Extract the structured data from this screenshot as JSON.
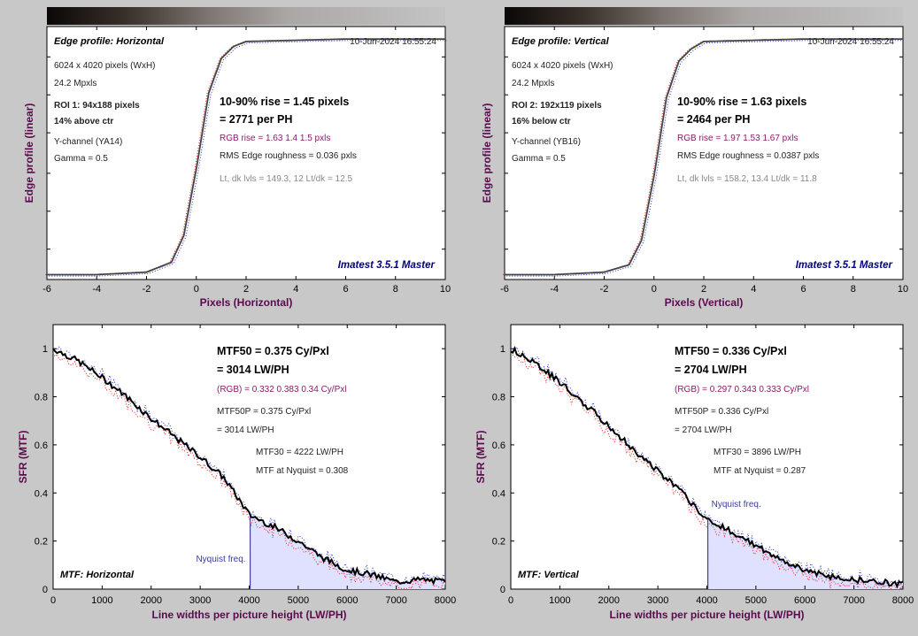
{
  "colors": {
    "background": "#c8c8c8",
    "axis_label": "#5a0a4e",
    "curve": "#000000",
    "red": "#e02020",
    "blue": "#2030d0",
    "fill": "#e0e0ff",
    "brand": "#000080"
  },
  "edge_panels": [
    {
      "title": "Edge profile: Horizontal",
      "timestamp": "10-Jun-2024 16:55:24",
      "info": [
        "6024 x 4020 pixels (WxH)",
        "24.2 Mpxls"
      ],
      "roi": [
        "ROI 1:  94x188 pixels",
        "14% above ctr"
      ],
      "channel": [
        "Y-channel  (YA14)",
        "Gamma = 0.5"
      ],
      "rise": "10-90% rise = 1.45 pixels",
      "per_ph": "= 2771 per PH",
      "rgb_rise": "RGB rise = 1.63  1.4  1.5 pxls",
      "roughness": "RMS Edge roughness = 0.036 pxls",
      "levels": "Lt, dk lvls = 149.3, 12   Lt/dk = 12.5",
      "brand": "Imatest 3.5.1 Master",
      "xlabel": "Pixels (Horizontal)",
      "ylabel": "Edge profile (linear)"
    },
    {
      "title": "Edge profile: Vertical",
      "timestamp": "10-Jun-2024 16:55:24",
      "info": [
        "6024 x 4020 pixels (WxH)",
        "24.2 Mpxls"
      ],
      "roi": [
        "ROI 2:  192x119 pixels",
        "16% below ctr"
      ],
      "channel": [
        "Y-channel  (YB16)",
        "Gamma = 0.5"
      ],
      "rise": "10-90% rise = 1.63 pixels",
      "per_ph": "= 2464 per PH",
      "rgb_rise": "RGB rise = 1.97  1.53  1.67 pxls",
      "roughness": "RMS Edge roughness = 0.0387 pxls",
      "levels": "Lt, dk lvls = 158.2, 13.4   Lt/dk = 11.8",
      "brand": "Imatest 3.5.1 Master",
      "xlabel": "Pixels (Vertical)",
      "ylabel": "Edge profile (linear)"
    }
  ],
  "mtf_panels": [
    {
      "mtf50": "MTF50 = 0.375 Cy/Pxl",
      "mtf50_lw": "= 3014 LW/PH",
      "rgb": "(RGB) = 0.332  0.383  0.34 Cy/Pxl",
      "mtf50p": "MTF50P = 0.375 Cy/Pxl",
      "mtf50p_lw": "= 3014 LW/PH",
      "mtf30": "MTF30 = 4222 LW/PH",
      "nyq_text": "MTF at Nyquist = 0.308",
      "nyq_label": "Nyquist freq.",
      "title": "MTF: Horizontal",
      "xlabel": "Line widths per picture height (LW/PH)",
      "ylabel": "SFR (MTF)"
    },
    {
      "mtf50": "MTF50 = 0.336 Cy/Pxl",
      "mtf50_lw": "= 2704 LW/PH",
      "rgb": "(RGB) = 0.297  0.343  0.333 Cy/Pxl",
      "mtf50p": "MTF50P = 0.336 Cy/Pxl",
      "mtf50p_lw": "= 2704 LW/PH",
      "mtf30": "MTF30 = 3896 LW/PH",
      "nyq_text": "MTF at Nyquist = 0.287",
      "nyq_label": "Nyquist freq.",
      "title": "MTF: Vertical",
      "xlabel": "Line widths per picture height (LW/PH)",
      "ylabel": "SFR (MTF)"
    }
  ],
  "chart_data": [
    {
      "type": "line",
      "title": "Edge profile: Horizontal",
      "xlabel": "Pixels (Horizontal)",
      "ylabel": "Edge profile (linear)",
      "xlim": [
        -6,
        10
      ],
      "xticks": [
        -6,
        -4,
        -2,
        0,
        2,
        4,
        6,
        8,
        10
      ],
      "series": [
        {
          "x": [
            -6,
            -4,
            -2,
            -1,
            -0.5,
            0,
            0.5,
            1,
            1.5,
            2,
            4,
            6,
            8,
            10
          ],
          "values": [
            0.02,
            0.02,
            0.03,
            0.07,
            0.18,
            0.45,
            0.76,
            0.9,
            0.95,
            0.97,
            0.975,
            0.98,
            0.98,
            0.98
          ]
        }
      ]
    },
    {
      "type": "line",
      "title": "Edge profile: Vertical",
      "xlabel": "Pixels (Vertical)",
      "ylabel": "Edge profile (linear)",
      "xlim": [
        -6,
        10
      ],
      "xticks": [
        -6,
        -4,
        -2,
        0,
        2,
        4,
        6,
        8,
        10
      ],
      "series": [
        {
          "x": [
            -6,
            -4,
            -2,
            -1,
            -0.5,
            0,
            0.5,
            1,
            1.5,
            2,
            4,
            6,
            8,
            10
          ],
          "values": [
            0.02,
            0.02,
            0.03,
            0.06,
            0.16,
            0.42,
            0.74,
            0.89,
            0.94,
            0.97,
            0.975,
            0.98,
            0.98,
            0.98
          ]
        }
      ]
    },
    {
      "type": "area",
      "title": "MTF: Horizontal",
      "xlabel": "Line widths per picture height (LW/PH)",
      "ylabel": "SFR (MTF)",
      "xlim": [
        0,
        8000
      ],
      "ylim": [
        0,
        1.1
      ],
      "xticks": [
        0,
        1000,
        2000,
        3000,
        4000,
        5000,
        6000,
        7000,
        8000
      ],
      "yticks": [
        0,
        0.2,
        0.4,
        0.6,
        0.8,
        1
      ],
      "nyquist": 4020,
      "series": [
        {
          "x": [
            0,
            500,
            1000,
            1500,
            2000,
            2500,
            3000,
            3500,
            4000,
            4500,
            5000,
            5500,
            6000,
            6500,
            7000,
            7500,
            8000
          ],
          "values": [
            1.0,
            0.95,
            0.88,
            0.8,
            0.71,
            0.63,
            0.55,
            0.46,
            0.31,
            0.26,
            0.2,
            0.13,
            0.08,
            0.06,
            0.03,
            0.04,
            0.03
          ]
        }
      ]
    },
    {
      "type": "area",
      "title": "MTF: Vertical",
      "xlabel": "Line widths per picture height (LW/PH)",
      "ylabel": "SFR (MTF)",
      "xlim": [
        0,
        8000
      ],
      "ylim": [
        0,
        1.1
      ],
      "xticks": [
        0,
        1000,
        2000,
        3000,
        4000,
        5000,
        6000,
        7000,
        8000
      ],
      "yticks": [
        0,
        0.2,
        0.4,
        0.6,
        0.8,
        1
      ],
      "nyquist": 4020,
      "series": [
        {
          "x": [
            0,
            500,
            1000,
            1500,
            2000,
            2500,
            3000,
            3500,
            4000,
            4500,
            5000,
            5500,
            6000,
            6500,
            7000,
            7500,
            8000
          ],
          "values": [
            1.0,
            0.94,
            0.86,
            0.77,
            0.68,
            0.58,
            0.49,
            0.4,
            0.29,
            0.24,
            0.18,
            0.12,
            0.08,
            0.05,
            0.04,
            0.03,
            0.02
          ]
        }
      ]
    }
  ]
}
